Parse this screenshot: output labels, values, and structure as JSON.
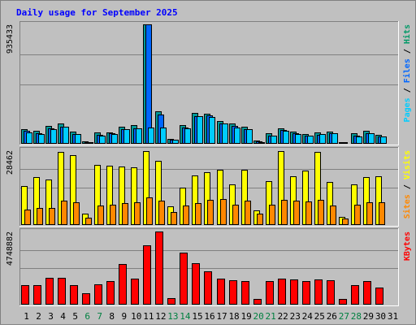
{
  "chart_data": {
    "type": "bar",
    "title": "Daily usage for September 2025",
    "days": [
      "1",
      "2",
      "3",
      "4",
      "5",
      "6",
      "7",
      "8",
      "9",
      "10",
      "11",
      "12",
      "13",
      "14",
      "15",
      "16",
      "17",
      "18",
      "19",
      "20",
      "21",
      "22",
      "23",
      "24",
      "25",
      "26",
      "27",
      "28",
      "29",
      "30",
      "31"
    ],
    "weekend_days": [
      "6",
      "7",
      "13",
      "14",
      "20",
      "21",
      "27",
      "28"
    ],
    "panels": [
      {
        "id": "hits",
        "max_label": "935433",
        "max": 935433,
        "legend": [
          {
            "text": "Pages",
            "color": "#00ccff"
          },
          {
            "text": " / ",
            "color": "#000000"
          },
          {
            "text": "Files",
            "color": "#0066ff"
          },
          {
            "text": " / ",
            "color": "#000000"
          },
          {
            "text": "Hits",
            "color": "#009966"
          }
        ],
        "series": [
          {
            "name": "Hits",
            "color": "#009999",
            "values": [
              117000,
              100000,
              137000,
              156000,
              95000,
              20000,
              87000,
              91000,
              135000,
              148000,
              935433,
              254000,
              40000,
              146000,
              242000,
              238000,
              180000,
              160000,
              136000,
              26000,
              80000,
              124000,
              97000,
              78000,
              87000,
              97000,
              15000,
              80000,
              102000,
              70000,
              0
            ]
          },
          {
            "name": "Files",
            "color": "#0066ff",
            "values": [
              100000,
              80000,
              120000,
              136000,
              78000,
              15000,
              71000,
              80000,
              116000,
              123000,
              935433,
              230000,
              30000,
              127000,
              219000,
              224000,
              160000,
              143000,
              117000,
              18000,
              65000,
              106000,
              80000,
              66000,
              71000,
              80000,
              10000,
              63000,
              85000,
              55000,
              0
            ]
          },
          {
            "name": "Pages",
            "color": "#00ccff",
            "values": [
              90000,
              77000,
              115000,
              134000,
              74000,
              12000,
              63000,
              76000,
              113000,
              122000,
              130000,
              130000,
              30000,
              124000,
              215000,
              207000,
              158000,
              127000,
              113000,
              15000,
              63000,
              104000,
              75000,
              64000,
              75000,
              81000,
              8000,
              60000,
              85000,
              55000,
              0
            ]
          }
        ]
      },
      {
        "id": "visits",
        "max_label": "28462",
        "max": 28462,
        "legend": [
          {
            "text": "Sites",
            "color": "#ff8800"
          },
          {
            "text": " / ",
            "color": "#000000"
          },
          {
            "text": "Visits",
            "color": "#ffff00"
          }
        ],
        "series": [
          {
            "name": "Visits",
            "color": "#ffff00",
            "values": [
              14800,
              18100,
              17300,
              27800,
              26600,
              4200,
              23000,
              22600,
              22300,
              21900,
              28100,
              24400,
              7000,
              14300,
              19000,
              20000,
              21100,
              15600,
              21000,
              5500,
              16800,
              28200,
              18500,
              20600,
              27800,
              16500,
              3000,
              15500,
              18300,
              18600,
              0
            ]
          },
          {
            "name": "Sites",
            "color": "#ff8800",
            "values": [
              6000,
              6500,
              6400,
              9200,
              8700,
              2800,
              7400,
              7700,
              8300,
              8600,
              10500,
              9300,
              4800,
              7300,
              8300,
              9700,
              10000,
              7700,
              9300,
              4200,
              7600,
              9500,
              9300,
              9000,
              9500,
              7500,
              2500,
              7800,
              8600,
              8600,
              0
            ]
          }
        ]
      },
      {
        "id": "kbytes",
        "max_label": "4748882",
        "max": 4748882,
        "legend": [
          {
            "text": "KBytes",
            "color": "#ff0000"
          }
        ],
        "series": [
          {
            "name": "KBytes",
            "color": "#ff0000",
            "values": [
              1250000,
              1250000,
              1760000,
              1760000,
              1250000,
              730000,
              1300000,
              1530000,
              2650000,
              1690000,
              3840000,
              4748882,
              420000,
              3380000,
              2690000,
              2170000,
              1710000,
              1570000,
              1550000,
              350000,
              1510000,
              1690000,
              1620000,
              1550000,
              1630000,
              1590000,
              380000,
              1280000,
              1520000,
              1130000,
              0
            ]
          }
        ]
      }
    ]
  }
}
